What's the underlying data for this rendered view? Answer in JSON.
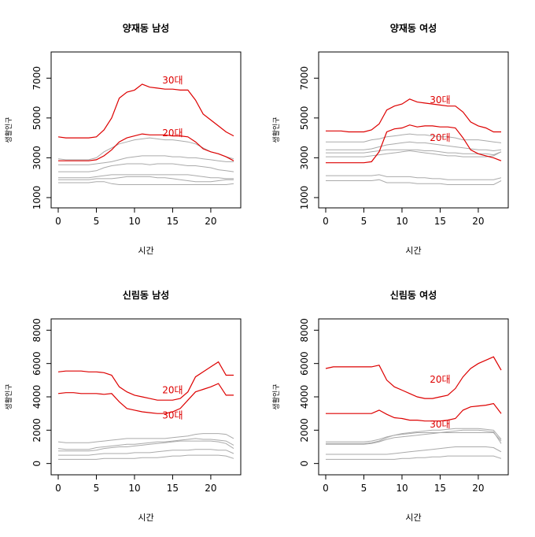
{
  "colors": {
    "highlight": "#dd0000",
    "background_lines": "#aaaaaa",
    "axis": "#000000"
  },
  "chart_data": [
    {
      "type": "line",
      "title": "양재동 남성",
      "xlabel": "시간",
      "ylabel": "생활인구",
      "xlim": [
        0,
        23
      ],
      "ylim": [
        800,
        8000
      ],
      "xticks": [
        0,
        5,
        10,
        15,
        20
      ],
      "yticks": [
        1000,
        3000,
        5000,
        7000
      ],
      "grid": false,
      "x": [
        0,
        1,
        2,
        3,
        4,
        5,
        6,
        7,
        8,
        9,
        10,
        11,
        12,
        13,
        14,
        15,
        16,
        17,
        18,
        19,
        20,
        21,
        22,
        23
      ],
      "series": [
        {
          "name": "30대",
          "highlight": true,
          "label_x": 15,
          "label_y": 6900,
          "values": [
            4050,
            4000,
            4000,
            4000,
            4000,
            4050,
            4400,
            5000,
            6000,
            6300,
            6400,
            6700,
            6550,
            6500,
            6450,
            6450,
            6400,
            6400,
            5900,
            5200,
            4900,
            4600,
            4300,
            4100
          ]
        },
        {
          "name": "20대",
          "highlight": true,
          "label_x": 15,
          "label_y": 4250,
          "values": [
            2850,
            2850,
            2850,
            2850,
            2850,
            2900,
            3100,
            3400,
            3800,
            4000,
            4100,
            4200,
            4150,
            4150,
            4150,
            4100,
            4100,
            4050,
            3800,
            3450,
            3300,
            3200,
            3050,
            2850
          ]
        },
        {
          "values": [
            2950,
            2900,
            2900,
            2900,
            2900,
            3000,
            3300,
            3500,
            3700,
            3800,
            3900,
            3950,
            4000,
            3950,
            3900,
            3900,
            3850,
            3800,
            3700,
            3500,
            3300,
            3200,
            3050,
            2950
          ]
        },
        {
          "values": [
            2650,
            2650,
            2650,
            2650,
            2650,
            2700,
            2750,
            2800,
            2900,
            3000,
            3050,
            3100,
            3100,
            3100,
            3100,
            3050,
            3050,
            3000,
            3000,
            2950,
            2900,
            2850,
            2800,
            2800
          ]
        },
        {
          "values": [
            2300,
            2300,
            2300,
            2300,
            2300,
            2350,
            2500,
            2600,
            2650,
            2700,
            2700,
            2700,
            2650,
            2700,
            2700,
            2700,
            2650,
            2600,
            2600,
            2550,
            2500,
            2400,
            2350,
            2300
          ]
        },
        {
          "values": [
            2000,
            2000,
            2000,
            2000,
            2000,
            2050,
            2100,
            2150,
            2150,
            2150,
            2150,
            2150,
            2150,
            2150,
            2150,
            2150,
            2150,
            2150,
            2100,
            2050,
            2000,
            2000,
            1950,
            1950
          ]
        },
        {
          "values": [
            1750,
            1750,
            1750,
            1750,
            1750,
            1800,
            1800,
            1700,
            1650,
            1650,
            1650,
            1650,
            1650,
            1650,
            1650,
            1650,
            1650,
            1650,
            1650,
            1650,
            1650,
            1650,
            1650,
            1700
          ]
        },
        {
          "values": [
            1900,
            1900,
            1900,
            1900,
            1900,
            1950,
            1950,
            1950,
            2000,
            2050,
            2050,
            2050,
            2050,
            2000,
            2000,
            1950,
            1900,
            1850,
            1800,
            1800,
            1800,
            1850,
            1900,
            1900
          ]
        }
      ]
    },
    {
      "type": "line",
      "title": "양재동 여성",
      "xlabel": "시간",
      "ylabel": "생활인구",
      "xlim": [
        0,
        23
      ],
      "ylim": [
        800,
        8000
      ],
      "xticks": [
        0,
        5,
        10,
        15,
        20
      ],
      "yticks": [
        1000,
        3000,
        5000,
        7000
      ],
      "grid": false,
      "x": [
        0,
        1,
        2,
        3,
        4,
        5,
        6,
        7,
        8,
        9,
        10,
        11,
        12,
        13,
        14,
        15,
        16,
        17,
        18,
        19,
        20,
        21,
        22,
        23
      ],
      "series": [
        {
          "name": "30대",
          "highlight": true,
          "label_x": 15,
          "label_y": 5900,
          "values": [
            4350,
            4350,
            4350,
            4300,
            4300,
            4300,
            4400,
            4700,
            5400,
            5600,
            5700,
            5950,
            5800,
            5750,
            5700,
            5650,
            5600,
            5600,
            5300,
            4800,
            4600,
            4500,
            4300,
            4300
          ]
        },
        {
          "name": "20대",
          "highlight": true,
          "label_x": 15,
          "label_y": 4000,
          "values": [
            2750,
            2750,
            2750,
            2750,
            2750,
            2750,
            2800,
            3300,
            4300,
            4450,
            4500,
            4650,
            4550,
            4600,
            4600,
            4550,
            4550,
            4500,
            4000,
            3400,
            3200,
            3100,
            3000,
            2850
          ]
        },
        {
          "values": [
            3800,
            3800,
            3800,
            3800,
            3800,
            3800,
            3900,
            3950,
            4050,
            4100,
            4150,
            4200,
            4150,
            4150,
            4100,
            4050,
            4050,
            4000,
            3900,
            3900,
            3900,
            3850,
            3800,
            3750
          ]
        },
        {
          "values": [
            3400,
            3400,
            3400,
            3400,
            3400,
            3400,
            3450,
            3550,
            3650,
            3700,
            3750,
            3800,
            3750,
            3750,
            3700,
            3650,
            3600,
            3550,
            3500,
            3450,
            3400,
            3400,
            3350,
            3400
          ]
        },
        {
          "values": [
            3250,
            3250,
            3250,
            3250,
            3250,
            3250,
            3300,
            3350,
            3400,
            3400,
            3400,
            3400,
            3400,
            3350,
            3350,
            3300,
            3250,
            3250,
            3200,
            3200,
            3200,
            3200,
            3150,
            3300
          ]
        },
        {
          "values": [
            3050,
            3050,
            3050,
            3050,
            3050,
            3050,
            3100,
            3150,
            3200,
            3250,
            3300,
            3350,
            3300,
            3250,
            3200,
            3150,
            3100,
            3100,
            3050,
            3050,
            3050,
            3050,
            3100,
            3300
          ]
        },
        {
          "values": [
            2100,
            2100,
            2100,
            2100,
            2100,
            2100,
            2100,
            2150,
            2050,
            2050,
            2050,
            2050,
            2000,
            2000,
            1950,
            1950,
            1900,
            1900,
            1900,
            1900,
            1900,
            1900,
            1900,
            2000
          ]
        },
        {
          "values": [
            1850,
            1850,
            1850,
            1850,
            1850,
            1850,
            1850,
            1900,
            1750,
            1750,
            1750,
            1750,
            1700,
            1700,
            1700,
            1700,
            1650,
            1650,
            1650,
            1650,
            1650,
            1650,
            1650,
            1850
          ]
        }
      ]
    },
    {
      "type": "line",
      "title": "신림동 남성",
      "xlabel": "시간",
      "ylabel": "생활인구",
      "xlim": [
        0,
        23
      ],
      "ylim": [
        -300,
        8300
      ],
      "xticks": [
        0,
        5,
        10,
        15,
        20
      ],
      "yticks": [
        0,
        2000,
        4000,
        6000,
        8000
      ],
      "grid": false,
      "x": [
        0,
        1,
        2,
        3,
        4,
        5,
        6,
        7,
        8,
        9,
        10,
        11,
        12,
        13,
        14,
        15,
        16,
        17,
        18,
        19,
        20,
        21,
        22,
        23
      ],
      "series": [
        {
          "name": "20대",
          "highlight": true,
          "label_x": 15,
          "label_y": 4400,
          "values": [
            5500,
            5550,
            5550,
            5550,
            5500,
            5500,
            5450,
            5300,
            4600,
            4300,
            4100,
            4000,
            3900,
            3800,
            3800,
            3800,
            3900,
            4300,
            5200,
            5500,
            5800,
            6100,
            5300,
            5300
          ]
        },
        {
          "name": "30대",
          "highlight": true,
          "label_x": 15,
          "label_y": 2900,
          "values": [
            4200,
            4250,
            4250,
            4200,
            4200,
            4200,
            4150,
            4200,
            3700,
            3300,
            3200,
            3100,
            3050,
            3000,
            3000,
            3100,
            3300,
            3800,
            4300,
            4450,
            4600,
            4800,
            4100,
            4100
          ]
        },
        {
          "values": [
            1300,
            1250,
            1250,
            1250,
            1250,
            1300,
            1350,
            1400,
            1450,
            1500,
            1500,
            1500,
            1500,
            1500,
            1500,
            1550,
            1600,
            1650,
            1750,
            1800,
            1800,
            1800,
            1750,
            1500
          ]
        },
        {
          "values": [
            900,
            850,
            850,
            850,
            850,
            950,
            1000,
            1050,
            1100,
            1150,
            1150,
            1200,
            1250,
            1300,
            1300,
            1350,
            1400,
            1450,
            1500,
            1450,
            1450,
            1400,
            1350,
            1100
          ]
        },
        {
          "values": [
            750,
            750,
            750,
            750,
            750,
            800,
            900,
            950,
            1000,
            1000,
            1050,
            1100,
            1150,
            1200,
            1250,
            1300,
            1350,
            1350,
            1350,
            1350,
            1350,
            1300,
            1200,
            900
          ]
        },
        {
          "values": [
            500,
            500,
            500,
            500,
            500,
            550,
            600,
            600,
            600,
            600,
            650,
            650,
            650,
            700,
            750,
            800,
            800,
            800,
            850,
            850,
            850,
            800,
            800,
            600
          ]
        },
        {
          "values": [
            250,
            250,
            250,
            250,
            250,
            250,
            300,
            300,
            300,
            300,
            300,
            350,
            350,
            350,
            400,
            450,
            450,
            500,
            500,
            500,
            500,
            500,
            450,
            300
          ]
        }
      ]
    },
    {
      "type": "line",
      "title": "신림동 여성",
      "xlabel": "시간",
      "ylabel": "생활인구",
      "xlim": [
        0,
        23
      ],
      "ylim": [
        -300,
        8300
      ],
      "xticks": [
        0,
        5,
        10,
        15,
        20
      ],
      "yticks": [
        0,
        2000,
        4000,
        6000,
        8000
      ],
      "grid": false,
      "x": [
        0,
        1,
        2,
        3,
        4,
        5,
        6,
        7,
        8,
        9,
        10,
        11,
        12,
        13,
        14,
        15,
        16,
        17,
        18,
        19,
        20,
        21,
        22,
        23
      ],
      "series": [
        {
          "name": "20대",
          "highlight": true,
          "label_x": 15,
          "label_y": 5050,
          "values": [
            5700,
            5800,
            5800,
            5800,
            5800,
            5800,
            5800,
            5900,
            5000,
            4600,
            4400,
            4200,
            4000,
            3900,
            3900,
            4000,
            4100,
            4500,
            5200,
            5700,
            6000,
            6200,
            6400,
            5600
          ]
        },
        {
          "name": "30대",
          "highlight": true,
          "label_x": 15,
          "label_y": 2350,
          "values": [
            3000,
            3000,
            3000,
            3000,
            3000,
            3000,
            3000,
            3200,
            2950,
            2750,
            2700,
            2600,
            2600,
            2550,
            2550,
            2550,
            2600,
            2700,
            3200,
            3400,
            3450,
            3500,
            3600,
            3000
          ]
        },
        {
          "values": [
            1300,
            1300,
            1300,
            1300,
            1300,
            1300,
            1350,
            1450,
            1600,
            1700,
            1800,
            1850,
            1900,
            1950,
            2000,
            2000,
            2050,
            2100,
            2100,
            2100,
            2100,
            2050,
            2000,
            1450
          ]
        },
        {
          "values": [
            1200,
            1200,
            1200,
            1200,
            1200,
            1200,
            1250,
            1350,
            1550,
            1700,
            1750,
            1800,
            1850,
            1850,
            1850,
            1850,
            1850,
            1850,
            1850,
            1850,
            1850,
            1850,
            1850,
            1350
          ]
        },
        {
          "values": [
            1150,
            1150,
            1150,
            1150,
            1150,
            1150,
            1200,
            1300,
            1450,
            1550,
            1600,
            1650,
            1700,
            1750,
            1800,
            1850,
            1900,
            1950,
            2000,
            2000,
            2000,
            1950,
            1900,
            1200
          ]
        },
        {
          "values": [
            550,
            550,
            550,
            550,
            550,
            550,
            550,
            550,
            550,
            600,
            650,
            700,
            750,
            800,
            850,
            900,
            950,
            1000,
            1000,
            1000,
            1000,
            1000,
            950,
            700
          ]
        },
        {
          "values": [
            250,
            250,
            250,
            250,
            250,
            250,
            250,
            250,
            250,
            250,
            300,
            300,
            350,
            350,
            400,
            400,
            450,
            450,
            450,
            450,
            450,
            450,
            450,
            300
          ]
        }
      ]
    }
  ]
}
